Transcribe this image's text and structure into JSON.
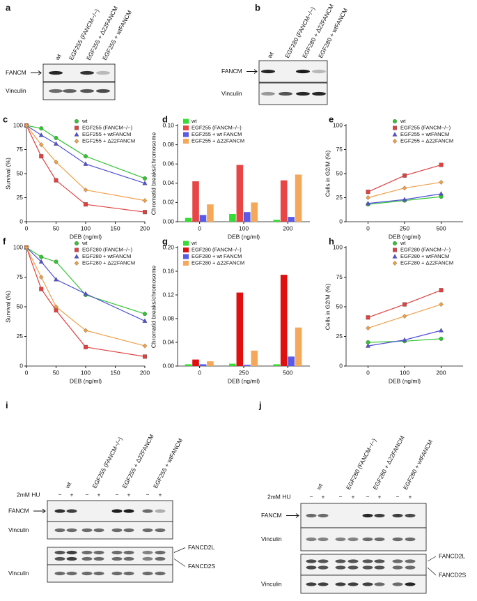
{
  "blots": [
    {
      "letter": "a",
      "lanes": [
        "wt",
        "EGF255 (FANCM−/−)",
        "EGF255 + Δ22FANCM",
        "EGF255 + wtFANCM"
      ],
      "rows": [
        "FANCM",
        "Vinculin"
      ]
    },
    {
      "letter": "b",
      "lanes": [
        "wt",
        "EGF280 (FANCM−/−)",
        "EGF280 + Δ22FANCM",
        "EGF280 + wtFANCM"
      ],
      "rows": [
        "FANCM",
        "Vinculin"
      ]
    },
    {
      "letter": "i",
      "lanes": [
        "wt",
        "EGF255 (FANCM−/−)",
        "EGF255 + Δ22FANCM",
        "EGF255 + wtFANCM"
      ],
      "treatment": "2mM HU",
      "signs": [
        "−",
        "+",
        "−",
        "+",
        "−",
        "+",
        "−",
        "+"
      ],
      "rows": [
        "FANCM",
        "Vinculin",
        "Vinculin"
      ],
      "side_labels": [
        "FANCD2L",
        "FANCD2S"
      ]
    },
    {
      "letter": "j",
      "lanes": [
        "wt",
        "EGF280 (FANCM−/−)",
        "EGF280 + Δ22FANCM",
        "EGF280 + wtFANCM"
      ],
      "treatment": "2mM HU",
      "signs": [
        "−",
        "+",
        "−",
        "+",
        "−",
        "+",
        "−",
        "+"
      ],
      "rows": [
        "FANCM",
        "Vinculin",
        "Vinculin"
      ],
      "side_labels": [
        "FANCD2L",
        "FANCD2S"
      ]
    }
  ],
  "chart_data": [
    {
      "letter": "c",
      "type": "line",
      "x_label": "DEB (ng/ml)",
      "y_label": "Survival (%)",
      "x": [
        0,
        25,
        50,
        100,
        200
      ],
      "xlim": [
        0,
        200
      ],
      "xticks": [
        0,
        50,
        100,
        150,
        200
      ],
      "ylim": [
        0,
        100
      ],
      "yticks": [
        0,
        25,
        50,
        75,
        100
      ],
      "legend": "upper right",
      "series": [
        {
          "name": "wt",
          "color": "#33c433",
          "marker": "circle",
          "values": [
            100,
            97,
            87,
            68,
            45
          ]
        },
        {
          "name": "EGF255 (FANCM−/−)",
          "color": "#e0403f",
          "marker": "square",
          "values": [
            100,
            68,
            43,
            18,
            10
          ]
        },
        {
          "name": "EGF255 + wtFANCM",
          "color": "#5050d8",
          "marker": "triangle",
          "values": [
            100,
            90,
            81,
            60,
            40
          ]
        },
        {
          "name": "EGF255 + Δ22FANCM",
          "color": "#f0a048",
          "marker": "diamond",
          "values": [
            100,
            80,
            62,
            33,
            22
          ]
        }
      ]
    },
    {
      "letter": "d",
      "type": "bar",
      "x_label": "DEB (ng/ml)",
      "y_label": "Chromatid breaks/chromosome",
      "categories": [
        "0",
        "100",
        "200"
      ],
      "ylim": [
        0,
        0.1
      ],
      "yticks": [
        {
          "value": 0,
          "label": "0.00"
        },
        {
          "value": 0.02,
          "label": "0.02"
        },
        {
          "value": 0.04,
          "label": "0.04"
        },
        {
          "value": 0.06,
          "label": "0.06"
        },
        {
          "value": 0.08,
          "label": "0.08"
        },
        {
          "value": 0.1,
          "label": "0.10"
        }
      ],
      "legend": "upper left",
      "series": [
        {
          "name": "wt",
          "color": "#33dd33",
          "values": [
            0.004,
            0.008,
            0.002
          ]
        },
        {
          "name": "EGF255 (FANCM–/–)",
          "color": "#e84646",
          "values": [
            0.042,
            0.059,
            0.043
          ]
        },
        {
          "name": "EGF255 + wt FANCM",
          "color": "#5a5ae6",
          "values": [
            0.007,
            0.01,
            0.005
          ]
        },
        {
          "name": "EGF255 + Δ22FANCM",
          "color": "#f5a85a",
          "values": [
            0.018,
            0.02,
            0.049
          ]
        }
      ]
    },
    {
      "letter": "e",
      "type": "line",
      "x_label": "DEB (ng/ml)",
      "y_label": "Cells in G2/M (%)",
      "x": [
        0,
        250,
        500
      ],
      "xlim": [
        -150,
        650
      ],
      "xticks": [
        0,
        250,
        500
      ],
      "ylim": [
        0,
        100
      ],
      "yticks": [
        0,
        25,
        50,
        75,
        100
      ],
      "legend": "upper right",
      "series": [
        {
          "name": "wt",
          "color": "#33c433",
          "marker": "circle",
          "values": [
            18,
            22,
            26
          ]
        },
        {
          "name": "EGF255 (FANCM−/−)",
          "color": "#e0403f",
          "marker": "square",
          "values": [
            31,
            48,
            59
          ]
        },
        {
          "name": "EGF255 + wtFANCM",
          "color": "#5050d8",
          "marker": "triangle",
          "values": [
            19,
            23,
            29
          ]
        },
        {
          "name": "EGF255 + Δ22FANCM",
          "color": "#f0a048",
          "marker": "diamond",
          "values": [
            25,
            35,
            41
          ]
        }
      ]
    },
    {
      "letter": "f",
      "type": "line",
      "x_label": "DEB (ng/ml)",
      "y_label": "Survival (%)",
      "x": [
        0,
        25,
        50,
        100,
        200
      ],
      "xlim": [
        0,
        200
      ],
      "xticks": [
        0,
        50,
        100,
        150,
        200
      ],
      "ylim": [
        0,
        100
      ],
      "yticks": [
        0,
        25,
        50,
        75,
        100
      ],
      "legend": "upper right",
      "series": [
        {
          "name": "wt",
          "color": "#33c433",
          "marker": "circle",
          "values": [
            100,
            92,
            88,
            60,
            44
          ]
        },
        {
          "name": "EGF280  (FANCM−/−)",
          "color": "#e0403f",
          "marker": "square",
          "values": [
            100,
            65,
            47,
            16,
            8
          ]
        },
        {
          "name": "EGF280 + wtFANCM",
          "color": "#5050d8",
          "marker": "triangle",
          "values": [
            100,
            88,
            73,
            61,
            38
          ]
        },
        {
          "name": "EGF280 + Δ22FANCM",
          "color": "#f0a048",
          "marker": "diamond",
          "values": [
            100,
            75,
            50,
            30,
            17
          ]
        }
      ]
    },
    {
      "letter": "g",
      "type": "bar",
      "x_label": "DEB (ng/ml)",
      "y_label": "Chromatid breaks/chromosome",
      "categories": [
        "0",
        "250",
        "500"
      ],
      "ylim": [
        0,
        0.2
      ],
      "yticks": [
        {
          "value": 0,
          "label": "0.00"
        },
        {
          "value": 0.04,
          "label": "0.04"
        },
        {
          "value": 0.08,
          "label": "0.08"
        },
        {
          "value": 0.12,
          "label": "0.12"
        },
        {
          "value": 0.16,
          "label": "0.16"
        },
        {
          "value": 0.2,
          "label": "0.20"
        }
      ],
      "legend": "upper left",
      "series": [
        {
          "name": "wt",
          "color": "#33dd33",
          "values": [
            0.003,
            0.004,
            0.003
          ]
        },
        {
          "name": "EGF280 (FANCM–/–)",
          "color": "#e01010",
          "values": [
            0.011,
            0.124,
            0.154
          ]
        },
        {
          "name": "EGF280 + wt FANCM",
          "color": "#5a5ae6",
          "values": [
            0.003,
            0.002,
            0.016
          ]
        },
        {
          "name": "EGF280 + Δ22FANCM",
          "color": "#f5a85a",
          "values": [
            0.008,
            0.026,
            0.065
          ]
        }
      ]
    },
    {
      "letter": "h",
      "type": "line",
      "x_label": "DEB (ng/ml)",
      "y_label": "Cells in G2/M (%)",
      "x": [
        0,
        100,
        200
      ],
      "xlim": [
        -60,
        260
      ],
      "xticks": [
        0,
        100,
        200
      ],
      "ylim": [
        0,
        100
      ],
      "yticks": [
        0,
        25,
        50,
        75,
        100
      ],
      "legend": "upper right",
      "series": [
        {
          "name": "wt",
          "color": "#33c433",
          "marker": "circle",
          "values": [
            20,
            21,
            23
          ]
        },
        {
          "name": "EGF280 (FANCM−/−)",
          "color": "#e0403f",
          "marker": "square",
          "values": [
            41,
            52,
            64
          ]
        },
        {
          "name": "EGF280 + wtFANCM",
          "color": "#5050d8",
          "marker": "triangle",
          "values": [
            17,
            22,
            30
          ]
        },
        {
          "name": "EGF280 + Δ22FANCM",
          "color": "#f0a048",
          "marker": "diamond",
          "values": [
            32,
            42,
            52
          ]
        }
      ]
    }
  ]
}
